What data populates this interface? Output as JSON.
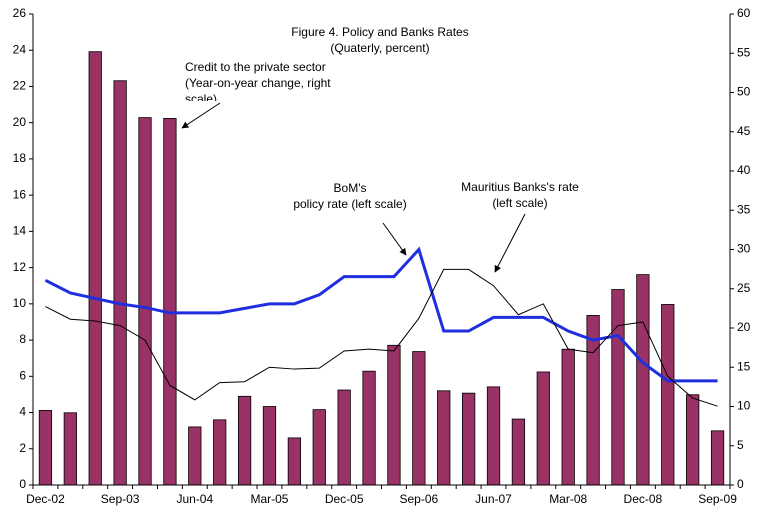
{
  "chart_data": {
    "type": "bar-line",
    "title": [
      "Figure 4. Policy and Banks Rates",
      "(Quaterly, percent)"
    ],
    "categories": [
      "Dec-02",
      null,
      null,
      "Sep-03",
      null,
      null,
      "Jun-04",
      null,
      null,
      "Mar-05",
      null,
      null,
      "Dec-05",
      null,
      null,
      "Sep-06",
      null,
      null,
      "Jun-07",
      null,
      null,
      "Mar-08",
      null,
      null,
      "Dec-08",
      null,
      null,
      "Sep-09"
    ],
    "series": [
      {
        "name": "Credit to the private sector",
        "type": "bar",
        "axis": "y2",
        "color": "#993366",
        "values": [
          9.5,
          9.2,
          55.2,
          51.5,
          46.8,
          46.7,
          7.4,
          8.3,
          11.3,
          10.0,
          6.0,
          9.6,
          12.1,
          14.5,
          17.8,
          17.0,
          12.0,
          11.7,
          12.5,
          8.4,
          14.4,
          17.3,
          21.6,
          24.9,
          26.8,
          23.0,
          11.5,
          6.9
        ]
      },
      {
        "name": "BoM's policy rate",
        "type": "line",
        "color": "#1f2fe0",
        "width": 3,
        "values": [
          11.3,
          10.6,
          10.3,
          10.0,
          9.8,
          9.5,
          9.5,
          9.5,
          9.75,
          10.0,
          10.0,
          10.5,
          11.5,
          11.5,
          11.5,
          13.0,
          8.5,
          8.5,
          9.25,
          9.25,
          9.25,
          8.5,
          8.0,
          8.25,
          6.75,
          5.75,
          5.75,
          5.75
        ]
      },
      {
        "name": "Mauritius Banks's rate",
        "type": "line",
        "color": "#000000",
        "width": 1,
        "values": [
          9.85,
          9.15,
          9.05,
          8.8,
          8.0,
          5.5,
          4.7,
          5.65,
          5.7,
          6.5,
          6.4,
          6.45,
          7.4,
          7.5,
          7.4,
          9.2,
          11.9,
          11.9,
          11.0,
          9.4,
          10.0,
          7.5,
          7.3,
          8.8,
          9.0,
          6.0,
          4.8,
          4.35
        ]
      }
    ],
    "annotations": [
      [
        "Credit to the private sector",
        "(Year-on-year change, right",
        "scale)"
      ],
      [
        "BoM's",
        "policy rate (left scale)"
      ],
      [
        "Mauritius Banks's rate",
        "(left scale)"
      ]
    ],
    "ylim": [
      0,
      26
    ],
    "yticks": [
      0,
      2,
      4,
      6,
      8,
      10,
      12,
      14,
      16,
      18,
      20,
      22,
      24,
      26
    ],
    "y2lim": [
      0,
      60
    ],
    "y2ticks": [
      0,
      5,
      10,
      15,
      20,
      25,
      30,
      35,
      40,
      45,
      50,
      55,
      60
    ]
  }
}
